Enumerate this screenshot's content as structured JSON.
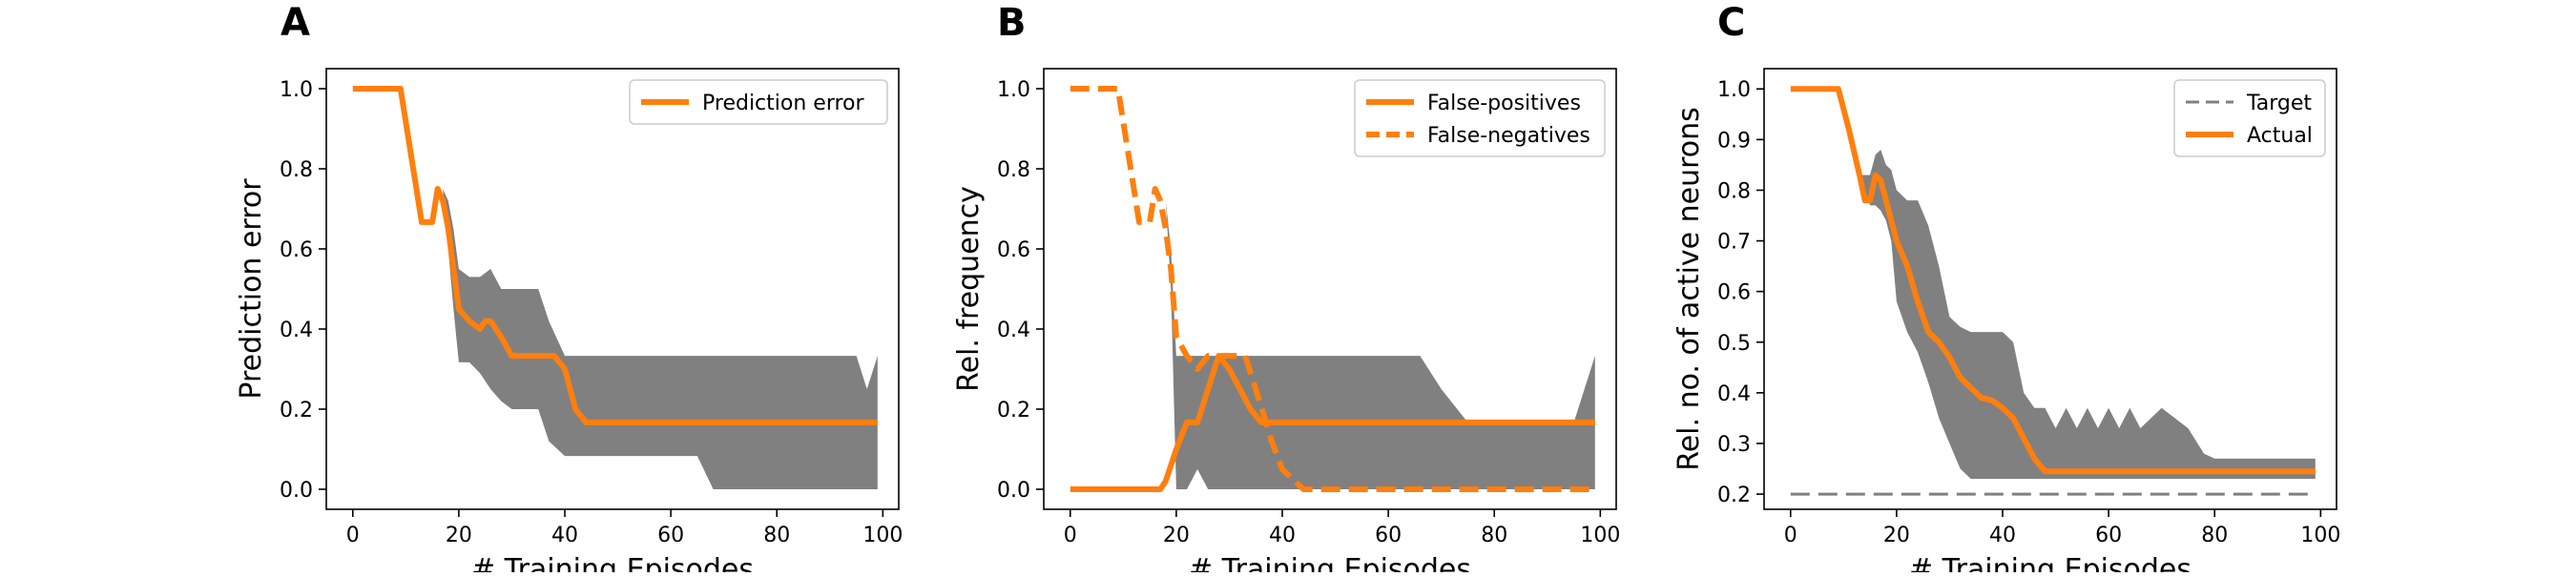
{
  "chart_data": [
    {
      "type": "line",
      "panel": "A",
      "xlabel": "# Training Episodes",
      "ylabel": "Prediction error",
      "xlim": [
        -5,
        103
      ],
      "ylim": [
        -0.05,
        1.05
      ],
      "xticks": [
        0,
        20,
        40,
        60,
        80,
        100
      ],
      "yticks": [
        0.0,
        0.2,
        0.4,
        0.6,
        0.8,
        1.0
      ],
      "ytick_format": 1,
      "legend": "top-right",
      "band": {
        "color": "#808080",
        "x": [
          0,
          9,
          13,
          15,
          16,
          17,
          18,
          19,
          20,
          22,
          24,
          26,
          28,
          30,
          35,
          37,
          40,
          45,
          60,
          65,
          68,
          70,
          75,
          95,
          97,
          99
        ],
        "upper": [
          1.0,
          1.0,
          0.667,
          0.667,
          0.75,
          0.75,
          0.72,
          0.65,
          0.55,
          0.53,
          0.53,
          0.55,
          0.5,
          0.5,
          0.5,
          0.42,
          0.333,
          0.333,
          0.333,
          0.333,
          0.333,
          0.333,
          0.333,
          0.333,
          0.25,
          0.333
        ],
        "lower": [
          1.0,
          1.0,
          0.667,
          0.667,
          0.75,
          0.75,
          0.6,
          0.45,
          0.317,
          0.317,
          0.29,
          0.25,
          0.22,
          0.2,
          0.2,
          0.12,
          0.083,
          0.083,
          0.083,
          0.083,
          0.0,
          0.0,
          0.0,
          0.0,
          0.0,
          0.0
        ]
      },
      "series": [
        {
          "name": "Prediction error",
          "color": "#ff7f0e",
          "dash": "solid",
          "x": [
            0,
            9,
            13,
            15,
            16,
            17,
            18,
            19,
            20,
            22,
            24,
            25,
            26,
            28,
            30,
            35,
            38,
            40,
            42,
            44,
            50,
            60,
            70,
            80,
            90,
            99
          ],
          "y": [
            1.0,
            1.0,
            0.667,
            0.667,
            0.75,
            0.72,
            0.65,
            0.55,
            0.45,
            0.42,
            0.4,
            0.42,
            0.42,
            0.38,
            0.333,
            0.333,
            0.333,
            0.3,
            0.2,
            0.167,
            0.167,
            0.167,
            0.167,
            0.167,
            0.167,
            0.167
          ]
        }
      ]
    },
    {
      "type": "line",
      "panel": "B",
      "xlabel": "# Training Episodes",
      "ylabel": "Rel. frequency",
      "xlim": [
        -5,
        103
      ],
      "ylim": [
        -0.05,
        1.05
      ],
      "xticks": [
        0,
        20,
        40,
        60,
        80,
        100
      ],
      "yticks": [
        0.0,
        0.2,
        0.4,
        0.6,
        0.8,
        1.0
      ],
      "ytick_format": 1,
      "legend": "top-right",
      "band": {
        "color": "#808080",
        "x": [
          0,
          14,
          16,
          17,
          18,
          19,
          20,
          22,
          24,
          26,
          28,
          30,
          33,
          35,
          37,
          40,
          45,
          60,
          66,
          70,
          75,
          95,
          97,
          99
        ],
        "upper": [
          0.0,
          0.0,
          0.75,
          0.75,
          0.72,
          0.6,
          0.333,
          0.333,
          0.333,
          0.333,
          0.333,
          0.333,
          0.333,
          0.333,
          0.333,
          0.333,
          0.333,
          0.333,
          0.333,
          0.25,
          0.167,
          0.167,
          0.25,
          0.333
        ],
        "lower": [
          0.0,
          0.0,
          0.75,
          0.75,
          0.72,
          0.5,
          0.0,
          0.0,
          0.05,
          0.0,
          0.0,
          0.0,
          0.0,
          0.0,
          0.0,
          0.0,
          0.0,
          0.0,
          0.0,
          0.0,
          0.0,
          0.0,
          0.0,
          0.0
        ]
      },
      "series": [
        {
          "name": "False-positives",
          "color": "#ff7f0e",
          "dash": "solid",
          "x": [
            0,
            10,
            17,
            18,
            20,
            22,
            24,
            26,
            28,
            30,
            32,
            34,
            36,
            38,
            40,
            50,
            60,
            70,
            80,
            90,
            99
          ],
          "y": [
            0.0,
            0.0,
            0.0,
            0.02,
            0.1,
            0.167,
            0.167,
            0.25,
            0.333,
            0.3,
            0.25,
            0.2,
            0.167,
            0.167,
            0.167,
            0.167,
            0.167,
            0.167,
            0.167,
            0.167,
            0.167
          ]
        },
        {
          "name": "False-negatives",
          "color": "#ff7f0e",
          "dash": "dashed",
          "x": [
            0,
            9,
            13,
            15,
            16,
            17,
            18,
            19,
            20,
            22,
            24,
            26,
            28,
            30,
            33,
            35,
            38,
            40,
            44,
            50,
            60,
            70,
            80,
            90,
            99
          ],
          "y": [
            1.0,
            1.0,
            0.667,
            0.667,
            0.75,
            0.72,
            0.65,
            0.55,
            0.38,
            0.333,
            0.3,
            0.333,
            0.333,
            0.333,
            0.333,
            0.25,
            0.12,
            0.05,
            0.0,
            0.0,
            0.0,
            0.0,
            0.0,
            0.0,
            0.0
          ]
        }
      ]
    },
    {
      "type": "line",
      "panel": "C",
      "xlabel": "# Training Episodes",
      "ylabel": "Rel. no. of active neurons",
      "xlim": [
        -5,
        103
      ],
      "ylim": [
        0.17,
        1.04
      ],
      "xticks": [
        0,
        20,
        40,
        60,
        80,
        100
      ],
      "yticks": [
        0.2,
        0.3,
        0.4,
        0.5,
        0.6,
        0.7,
        0.8,
        0.9,
        1.0
      ],
      "ytick_format": 1,
      "legend": "top-right",
      "band": {
        "color": "#808080",
        "x": [
          0,
          9,
          11,
          13,
          15,
          16,
          17,
          18,
          19,
          20,
          22,
          24,
          26,
          28,
          30,
          32,
          34,
          36,
          40,
          42,
          44,
          46,
          48,
          50,
          52,
          54,
          56,
          58,
          60,
          62,
          64,
          66,
          70,
          75,
          78,
          80,
          99
        ],
        "upper": [
          1.0,
          1.0,
          0.9,
          0.83,
          0.83,
          0.87,
          0.88,
          0.85,
          0.84,
          0.8,
          0.78,
          0.78,
          0.73,
          0.65,
          0.55,
          0.53,
          0.52,
          0.52,
          0.52,
          0.5,
          0.4,
          0.37,
          0.37,
          0.33,
          0.37,
          0.33,
          0.37,
          0.33,
          0.37,
          0.33,
          0.37,
          0.33,
          0.37,
          0.33,
          0.28,
          0.27,
          0.27
        ],
        "lower": [
          1.0,
          1.0,
          0.9,
          0.83,
          0.77,
          0.77,
          0.76,
          0.74,
          0.7,
          0.58,
          0.52,
          0.48,
          0.42,
          0.35,
          0.3,
          0.25,
          0.23,
          0.23,
          0.23,
          0.23,
          0.23,
          0.23,
          0.23,
          0.23,
          0.23,
          0.23,
          0.23,
          0.23,
          0.23,
          0.23,
          0.23,
          0.23,
          0.23,
          0.23,
          0.23,
          0.23,
          0.23
        ]
      },
      "series": [
        {
          "name": "Target",
          "color": "#808080",
          "dash": "dashed",
          "width": 3,
          "x": [
            0,
            99
          ],
          "y": [
            0.2,
            0.2
          ]
        },
        {
          "name": "Actual",
          "color": "#ff7f0e",
          "dash": "solid",
          "x": [
            0,
            9,
            11,
            13,
            14,
            15,
            16,
            17,
            18,
            20,
            22,
            24,
            26,
            28,
            30,
            32,
            34,
            36,
            38,
            40,
            42,
            44,
            46,
            48,
            50,
            60,
            70,
            80,
            90,
            99
          ],
          "y": [
            1.0,
            1.0,
            0.92,
            0.83,
            0.78,
            0.78,
            0.83,
            0.82,
            0.78,
            0.7,
            0.65,
            0.58,
            0.52,
            0.5,
            0.47,
            0.43,
            0.41,
            0.39,
            0.385,
            0.37,
            0.35,
            0.31,
            0.27,
            0.245,
            0.245,
            0.245,
            0.245,
            0.245,
            0.245,
            0.245
          ]
        }
      ]
    }
  ]
}
